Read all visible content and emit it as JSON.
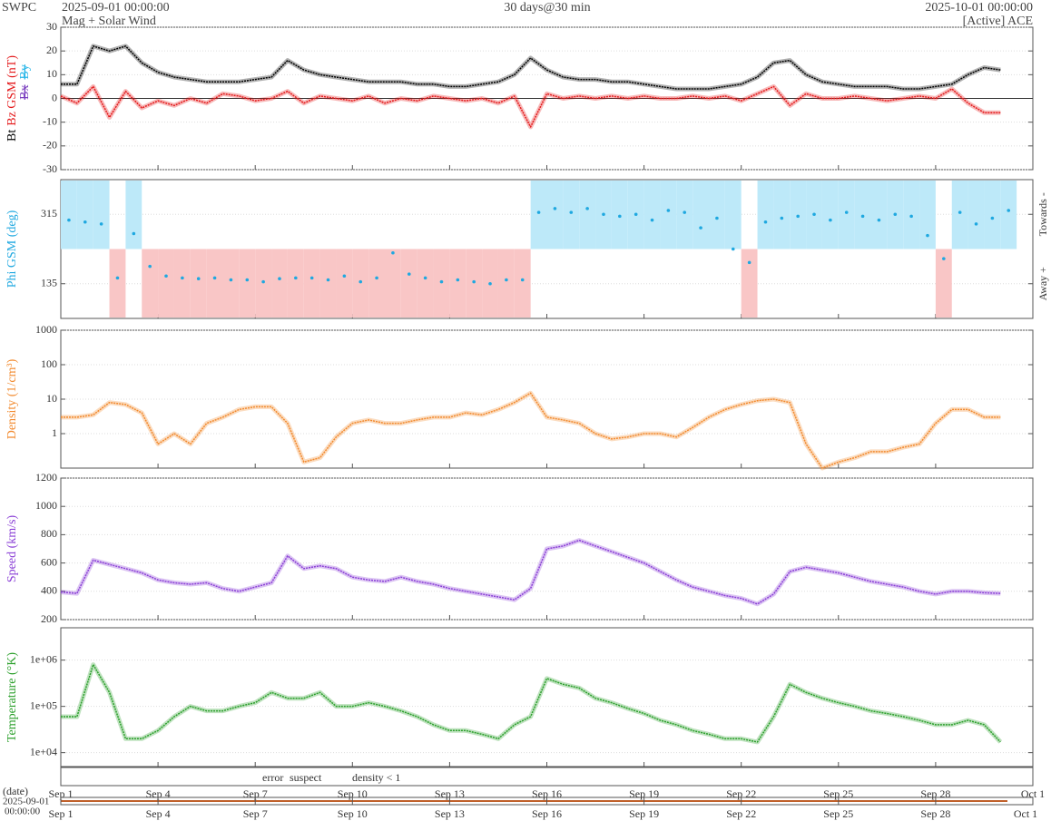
{
  "header": {
    "org": "SWPC",
    "start": "2025-09-01 00:00:00",
    "product": "Mag + Solar Wind",
    "span": "30 days@30 min",
    "end": "2025-10-01 00:00:00",
    "source": "[Active] ACE"
  },
  "time_axis": {
    "xlim": [
      0,
      30
    ],
    "xticks": [
      {
        "value": 0,
        "label": "Sep 1"
      },
      {
        "value": 3,
        "label": "Sep 4"
      },
      {
        "value": 6,
        "label": "Sep 7"
      },
      {
        "value": 9,
        "label": "Sep 10"
      },
      {
        "value": 12,
        "label": "Sep 13"
      },
      {
        "value": 15,
        "label": "Sep 16"
      },
      {
        "value": 18,
        "label": "Sep 19"
      },
      {
        "value": 21,
        "label": "Sep 22"
      },
      {
        "value": 24,
        "label": "Sep 25"
      },
      {
        "value": 27,
        "label": "Sep 28"
      },
      {
        "value": 30,
        "label": "Oct 1"
      }
    ],
    "date_label": "(date)",
    "date_start": "2025-09-01",
    "time_start": "00:00:00"
  },
  "flags": [
    {
      "text": "error",
      "color": "#e8261c"
    },
    {
      "text": "suspect",
      "color": "#f2b600"
    },
    {
      "text": "density < 1",
      "color": "#ff7f0e"
    }
  ],
  "chart_data": [
    {
      "type": "line",
      "ylabel": [
        {
          "text": "Bt",
          "color": "#000000"
        },
        {
          "text": "Bz GSM (nT)",
          "color": "#e41a1c"
        }
      ],
      "legend": [
        {
          "text": "Bx",
          "color": "#7b3fbf"
        },
        {
          "text": "By",
          "color": "#29b6e8"
        }
      ],
      "ylim": [
        -30,
        30
      ],
      "yticks": [
        -30,
        -20,
        -10,
        0,
        10,
        20,
        30
      ],
      "grid": true,
      "zero_line": true,
      "x": [
        0,
        0.5,
        1,
        1.5,
        2,
        2.5,
        3,
        3.5,
        4,
        4.5,
        5,
        5.5,
        6,
        6.5,
        7,
        7.5,
        8,
        8.5,
        9,
        9.5,
        10,
        10.5,
        11,
        11.5,
        12,
        12.5,
        13,
        13.5,
        14,
        14.5,
        15,
        15.5,
        16,
        16.5,
        17,
        17.5,
        18,
        18.5,
        19,
        19.5,
        20,
        20.5,
        21,
        21.5,
        22,
        22.5,
        23,
        23.5,
        24,
        24.5,
        25,
        25.5,
        26,
        26.5,
        27,
        27.5,
        28,
        28.5,
        29
      ],
      "series": [
        {
          "name": "Bt",
          "color": "#000000",
          "values": [
            6,
            6,
            22,
            20,
            22,
            15,
            11,
            9,
            8,
            7,
            7,
            7,
            8,
            9,
            16,
            12,
            10,
            9,
            8,
            7,
            7,
            7,
            6,
            6,
            5,
            5,
            6,
            7,
            10,
            17,
            12,
            9,
            8,
            8,
            7,
            7,
            6,
            5,
            4,
            4,
            4,
            5,
            6,
            9,
            15,
            16,
            10,
            7,
            6,
            5,
            5,
            5,
            4,
            4,
            5,
            6,
            10,
            13,
            12
          ]
        },
        {
          "name": "Bz",
          "color": "#e41a1c",
          "values": [
            1,
            -2,
            5,
            -8,
            3,
            -4,
            -1,
            -3,
            0,
            -2,
            2,
            1,
            -1,
            0,
            3,
            -2,
            1,
            0,
            -1,
            1,
            -2,
            0,
            -1,
            1,
            0,
            -1,
            0,
            -2,
            1,
            -12,
            2,
            0,
            1,
            0,
            1,
            0,
            1,
            0,
            0,
            1,
            0,
            1,
            -1,
            2,
            5,
            -3,
            2,
            0,
            0,
            1,
            0,
            -1,
            0,
            1,
            0,
            4,
            -2,
            -6,
            -6
          ]
        }
      ]
    },
    {
      "type": "scatter",
      "ylabel": [
        {
          "text": "Phi GSM (deg)",
          "color": "#1fa8e0"
        }
      ],
      "right_labels": [
        "Towards -",
        "Away +"
      ],
      "ylim": [
        45,
        405
      ],
      "yticks": [
        135,
        315
      ],
      "grid": true,
      "baseline": 225,
      "band_colors": [
        "#bde9f9",
        "#f9c6c6"
      ],
      "x": [
        0,
        0.5,
        1,
        1.5,
        2,
        2.5,
        3,
        3.5,
        4,
        4.5,
        5,
        5.5,
        6,
        6.5,
        7,
        7.5,
        8,
        8.5,
        9,
        9.5,
        10,
        10.5,
        11,
        11.5,
        12,
        12.5,
        13,
        13.5,
        14,
        14.5,
        15,
        15.5,
        16,
        16.5,
        17,
        17.5,
        18,
        18.5,
        19,
        19.5,
        20,
        20.5,
        21,
        21.5,
        22,
        22.5,
        23,
        23.5,
        24,
        24.5,
        25,
        25.5,
        26,
        26.5,
        27,
        27.5,
        28,
        28.5,
        29
      ],
      "series": [
        {
          "name": "Phi",
          "color": "#1fa8e0",
          "values": [
            300,
            295,
            290,
            150,
            265,
            180,
            155,
            150,
            148,
            150,
            145,
            145,
            140,
            148,
            150,
            150,
            145,
            155,
            140,
            150,
            215,
            160,
            150,
            140,
            145,
            140,
            135,
            145,
            145,
            320,
            330,
            320,
            330,
            315,
            310,
            315,
            300,
            325,
            320,
            280,
            305,
            225,
            190,
            295,
            305,
            310,
            315,
            300,
            320,
            310,
            300,
            315,
            310,
            260,
            200,
            320,
            290,
            305,
            325
          ]
        }
      ]
    },
    {
      "type": "line",
      "ylabel": [
        {
          "text": "Density (1/cm³)",
          "color": "#f28a2e"
        }
      ],
      "log": true,
      "ylim": [
        0.1,
        1000
      ],
      "yticks": [
        1,
        10,
        100,
        1000
      ],
      "grid": true,
      "x": [
        0,
        0.5,
        1,
        1.5,
        2,
        2.5,
        3,
        3.5,
        4,
        4.5,
        5,
        5.5,
        6,
        6.5,
        7,
        7.5,
        8,
        8.5,
        9,
        9.5,
        10,
        10.5,
        11,
        11.5,
        12,
        12.5,
        13,
        13.5,
        14,
        14.5,
        15,
        15.5,
        16,
        16.5,
        17,
        17.5,
        18,
        18.5,
        19,
        19.5,
        20,
        20.5,
        21,
        21.5,
        22,
        22.5,
        23,
        23.5,
        24,
        24.5,
        25,
        25.5,
        26,
        26.5,
        27,
        27.5,
        28,
        28.5,
        29
      ],
      "series": [
        {
          "name": "Density",
          "color": "#f28a2e",
          "values": [
            3,
            3,
            3.5,
            8,
            7,
            4,
            0.5,
            1,
            0.5,
            2,
            3,
            5,
            6,
            6,
            2,
            0.15,
            0.2,
            0.8,
            2,
            2.5,
            2,
            2,
            2.5,
            3,
            3,
            4,
            3.5,
            5,
            8,
            15,
            3,
            2.5,
            2,
            1,
            0.7,
            0.8,
            1,
            1,
            0.8,
            1.5,
            3,
            5,
            7,
            9,
            10,
            8,
            0.5,
            0.1,
            0.15,
            0.2,
            0.3,
            0.3,
            0.4,
            0.5,
            2,
            5,
            5,
            3,
            3
          ]
        }
      ]
    },
    {
      "type": "line",
      "ylabel": [
        {
          "text": "Speed (km/s)",
          "color": "#8a3fd6"
        }
      ],
      "ylim": [
        200,
        1200
      ],
      "yticks": [
        200,
        400,
        600,
        800,
        1000,
        1200
      ],
      "grid": true,
      "x": [
        0,
        0.5,
        1,
        1.5,
        2,
        2.5,
        3,
        3.5,
        4,
        4.5,
        5,
        5.5,
        6,
        6.5,
        7,
        7.5,
        8,
        8.5,
        9,
        9.5,
        10,
        10.5,
        11,
        11.5,
        12,
        12.5,
        13,
        13.5,
        14,
        14.5,
        15,
        15.5,
        16,
        16.5,
        17,
        17.5,
        18,
        18.5,
        19,
        19.5,
        20,
        20.5,
        21,
        21.5,
        22,
        22.5,
        23,
        23.5,
        24,
        24.5,
        25,
        25.5,
        26,
        26.5,
        27,
        27.5,
        28,
        28.5,
        29
      ],
      "series": [
        {
          "name": "Speed",
          "color": "#8a3fd6",
          "values": [
            395,
            385,
            620,
            590,
            560,
            530,
            480,
            460,
            450,
            460,
            420,
            400,
            430,
            460,
            650,
            560,
            580,
            560,
            500,
            480,
            470,
            500,
            470,
            450,
            420,
            400,
            380,
            360,
            340,
            420,
            700,
            720,
            760,
            720,
            680,
            640,
            600,
            540,
            480,
            430,
            400,
            370,
            350,
            310,
            380,
            540,
            570,
            550,
            530,
            500,
            470,
            450,
            430,
            400,
            380,
            400,
            400,
            390,
            385
          ]
        }
      ]
    },
    {
      "type": "line",
      "ylabel": [
        {
          "text": "Temperature (°K)",
          "color": "#2ca02c"
        }
      ],
      "log": true,
      "ylim": [
        5000,
        5000000
      ],
      "yticks": [
        {
          "value": 10000,
          "label": "1e+04"
        },
        {
          "value": 100000,
          "label": "1e+05"
        },
        {
          "value": 1000000,
          "label": "1e+06"
        }
      ],
      "grid": true,
      "x": [
        0,
        0.5,
        1,
        1.5,
        2,
        2.5,
        3,
        3.5,
        4,
        4.5,
        5,
        5.5,
        6,
        6.5,
        7,
        7.5,
        8,
        8.5,
        9,
        9.5,
        10,
        10.5,
        11,
        11.5,
        12,
        12.5,
        13,
        13.5,
        14,
        14.5,
        15,
        15.5,
        16,
        16.5,
        17,
        17.5,
        18,
        18.5,
        19,
        19.5,
        20,
        20.5,
        21,
        21.5,
        22,
        22.5,
        23,
        23.5,
        24,
        24.5,
        25,
        25.5,
        26,
        26.5,
        27,
        27.5,
        28,
        28.5,
        29
      ],
      "series": [
        {
          "name": "Temperature",
          "color": "#2ca02c",
          "values": [
            60000,
            60000,
            800000,
            200000,
            20000,
            20000,
            30000,
            60000,
            100000,
            80000,
            80000,
            100000,
            120000,
            200000,
            150000,
            150000,
            200000,
            100000,
            100000,
            120000,
            100000,
            80000,
            60000,
            40000,
            30000,
            30000,
            25000,
            20000,
            40000,
            60000,
            400000,
            300000,
            250000,
            150000,
            120000,
            90000,
            70000,
            50000,
            40000,
            30000,
            25000,
            20000,
            20000,
            17000,
            60000,
            300000,
            200000,
            150000,
            120000,
            100000,
            80000,
            70000,
            60000,
            50000,
            40000,
            40000,
            50000,
            40000,
            17000
          ]
        }
      ]
    }
  ]
}
